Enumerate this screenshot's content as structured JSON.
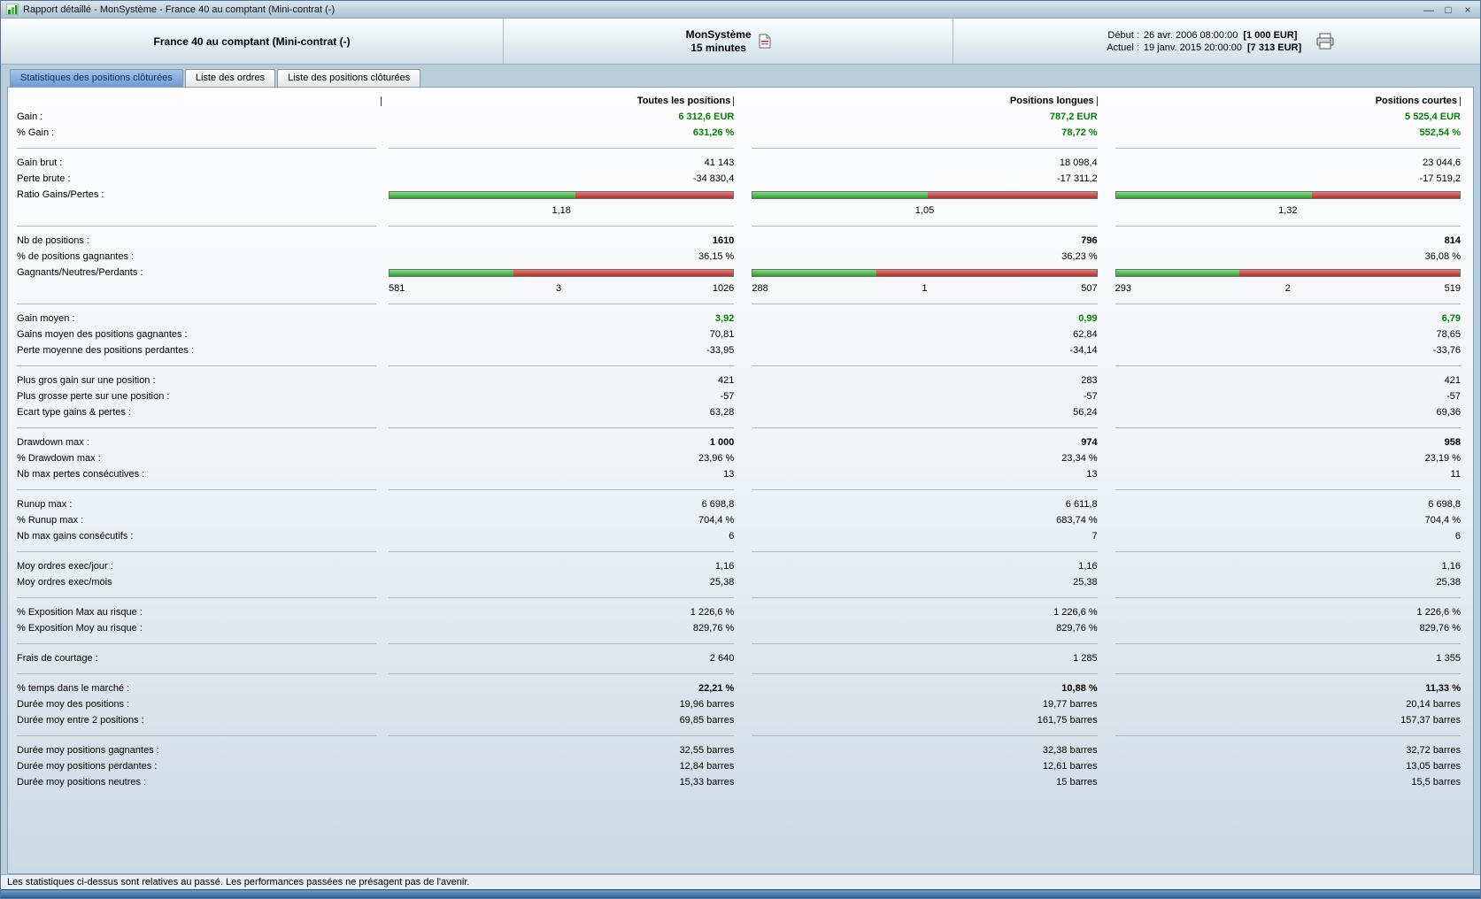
{
  "window": {
    "title": "Rapport détaillé - MonSystème - France 40 au comptant (Mini-contrat  (-)",
    "minimize": "—",
    "maximize": "□",
    "close": "×"
  },
  "header": {
    "instrument": "France 40 au comptant (Mini-contrat  (-)",
    "system_name": "MonSystème",
    "timeframe": "15 minutes",
    "start_label": "Début :",
    "start_datetime": "26 avr. 2006 08:00:00",
    "start_capital": "[1 000 EUR]",
    "current_label": "Actuel :",
    "current_datetime": "19 janv. 2015 20:00:00",
    "current_capital": "[7 313 EUR]"
  },
  "tabs": [
    {
      "label": "Statistiques des positions clôturées",
      "active": true
    },
    {
      "label": "Liste des ordres",
      "active": false
    },
    {
      "label": "Liste des positions clôturées",
      "active": false
    }
  ],
  "colors": {
    "gain_green": "#008200",
    "bar_green": "#2f9e2f",
    "bar_red": "#b43029"
  },
  "table": {
    "columns": [
      "Toutes les positions",
      "Positions longues",
      "Positions courtes"
    ],
    "rows": [
      {
        "t": "r",
        "label": "Gain :",
        "v": [
          "6 312,6 EUR",
          "787,2 EUR",
          "5 525,4 EUR"
        ],
        "c": "green"
      },
      {
        "t": "r",
        "label": "% Gain :",
        "v": [
          "631,26 %",
          "78,72 %",
          "552,54 %"
        ],
        "c": "green"
      },
      {
        "t": "sep"
      },
      {
        "t": "r",
        "label": "Gain brut :",
        "v": [
          "41 143",
          "18 098,4",
          "23 044,6"
        ]
      },
      {
        "t": "r",
        "label": "Perte brute :",
        "v": [
          "-34 830,4",
          "-17 311,2",
          "-17 519,2"
        ]
      },
      {
        "t": "bar",
        "label": "Ratio Gains/Pertes :",
        "green": [
          54,
          51,
          57
        ],
        "below": [
          [
            "1,18"
          ],
          [
            "1,05"
          ],
          [
            "1,32"
          ]
        ]
      },
      {
        "t": "sep"
      },
      {
        "t": "r",
        "label": "Nb de positions :",
        "v": [
          "1610",
          "796",
          "814"
        ],
        "b": true
      },
      {
        "t": "r",
        "label": "% de positions gagnantes :",
        "v": [
          "36,15 %",
          "36,23 %",
          "36,08 %"
        ]
      },
      {
        "t": "bar",
        "label": "Gagnants/Neutres/Perdants :",
        "green": [
          36,
          36,
          36
        ],
        "below": [
          [
            "581",
            "3",
            "1026"
          ],
          [
            "288",
            "1",
            "507"
          ],
          [
            "293",
            "2",
            "519"
          ]
        ]
      },
      {
        "t": "sep"
      },
      {
        "t": "r",
        "label": "Gain moyen :",
        "v": [
          "3,92",
          "0,99",
          "6,79"
        ],
        "c": "green"
      },
      {
        "t": "r",
        "label": "Gains moyen des positions gagnantes :",
        "v": [
          "70,81",
          "62,84",
          "78,65"
        ]
      },
      {
        "t": "r",
        "label": "Perte moyenne des positions perdantes :",
        "v": [
          "-33,95",
          "-34,14",
          "-33,76"
        ]
      },
      {
        "t": "sep"
      },
      {
        "t": "r",
        "label": "Plus gros gain sur une position :",
        "v": [
          "421",
          "283",
          "421"
        ]
      },
      {
        "t": "r",
        "label": "Plus grosse perte sur une position :",
        "v": [
          "-57",
          "-57",
          "-57"
        ]
      },
      {
        "t": "r",
        "label": "Ecart type gains & pertes :",
        "v": [
          "63,28",
          "56,24",
          "69,36"
        ]
      },
      {
        "t": "sep"
      },
      {
        "t": "r",
        "label": "Drawdown max :",
        "v": [
          "1 000",
          "974",
          "958"
        ],
        "b": true
      },
      {
        "t": "r",
        "label": "% Drawdown max :",
        "v": [
          "23,96 %",
          "23,34 %",
          "23,19 %"
        ]
      },
      {
        "t": "r",
        "label": "Nb max pertes consécutives :",
        "v": [
          "13",
          "13",
          "11"
        ]
      },
      {
        "t": "sep"
      },
      {
        "t": "r",
        "label": "Runup max :",
        "v": [
          "6 698,8",
          "6 611,8",
          "6 698,8"
        ]
      },
      {
        "t": "r",
        "label": "% Runup max :",
        "v": [
          "704,4 %",
          "683,74 %",
          "704,4 %"
        ]
      },
      {
        "t": "r",
        "label": "Nb max gains consécutifs :",
        "v": [
          "6",
          "7",
          "6"
        ]
      },
      {
        "t": "sep"
      },
      {
        "t": "r",
        "label": "Moy ordres exec/jour :",
        "v": [
          "1,16",
          "1,16",
          "1,16"
        ]
      },
      {
        "t": "r",
        "label": "Moy ordres exec/mois",
        "v": [
          "25,38",
          "25,38",
          "25,38"
        ]
      },
      {
        "t": "sep"
      },
      {
        "t": "r",
        "label": "% Exposition Max au risque :",
        "v": [
          "1 226,6 %",
          "1 226,6 %",
          "1 226,6 %"
        ]
      },
      {
        "t": "r",
        "label": "% Exposition Moy au risque :",
        "v": [
          "829,76 %",
          "829,76 %",
          "829,76 %"
        ]
      },
      {
        "t": "sep"
      },
      {
        "t": "r",
        "label": "Frais de courtage :",
        "v": [
          "2 640",
          "1 285",
          "1 355"
        ]
      },
      {
        "t": "sep"
      },
      {
        "t": "r",
        "label": "% temps dans le marché :",
        "v": [
          "22,21 %",
          "10,88 %",
          "11,33 %"
        ],
        "b": true
      },
      {
        "t": "r",
        "label": "Durée moy des positions :",
        "v": [
          "19,96 barres",
          "19,77 barres",
          "20,14 barres"
        ]
      },
      {
        "t": "r",
        "label": "Durée moy entre 2 positions :",
        "v": [
          "69,85 barres",
          "161,75 barres",
          "157,37 barres"
        ]
      },
      {
        "t": "sep"
      },
      {
        "t": "r",
        "label": "Durée moy positions gagnantes :",
        "v": [
          "32,55 barres",
          "32,38 barres",
          "32,72 barres"
        ]
      },
      {
        "t": "r",
        "label": "Durée moy positions perdantes :",
        "v": [
          "12,84 barres",
          "12,61 barres",
          "13,05 barres"
        ]
      },
      {
        "t": "r",
        "label": "Durée moy positions neutres :",
        "v": [
          "15,33 barres",
          "15 barres",
          "15,5 barres"
        ]
      }
    ]
  },
  "statusbar": {
    "text": "Les statistiques ci-dessus sont relatives au passé. Les performances passées ne présagent pas de l'avenir."
  }
}
